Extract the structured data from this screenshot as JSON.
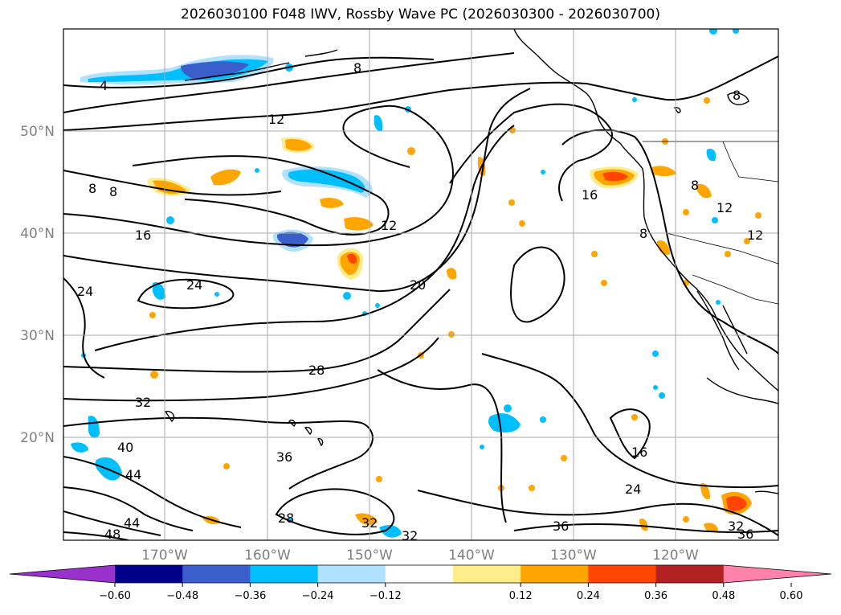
{
  "title": "2026030100 F048 IWV, Rossby Wave PC (2026030300 - 2026030700)",
  "axes": {
    "lat_labels": [
      "50°N",
      "40°N",
      "30°N",
      "20°N"
    ],
    "lon_labels": [
      "170°W",
      "160°W",
      "150°W",
      "140°W",
      "130°W",
      "120°W"
    ]
  },
  "contour_labels": [
    "4",
    "8",
    "12",
    "8",
    "8",
    "16",
    "12",
    "24",
    "24",
    "20",
    "28",
    "32",
    "40",
    "44",
    "36",
    "44",
    "48",
    "28",
    "32",
    "32",
    "36",
    "16",
    "24",
    "32",
    "36",
    "16",
    "8",
    "8",
    "12",
    "12",
    "8"
  ],
  "colorbar": {
    "ticks": [
      "−0.60",
      "−0.48",
      "−0.36",
      "−0.24",
      "−0.12",
      "0.12",
      "0.24",
      "0.36",
      "0.48",
      "0.60"
    ],
    "colors": [
      "#9932cc",
      "#00008b",
      "#3a5fcd",
      "#00bfff",
      "#b0e2ff",
      "#ffffff",
      "#ffec8b",
      "#ffa500",
      "#ff4500",
      "#b22222",
      "#ff82ab"
    ]
  },
  "colors": {
    "pos1": "#ffec8b",
    "pos2": "#ffa500",
    "pos3": "#ff4500",
    "neg1": "#b0e2ff",
    "neg2": "#00bfff",
    "neg3": "#3a5fcd"
  }
}
